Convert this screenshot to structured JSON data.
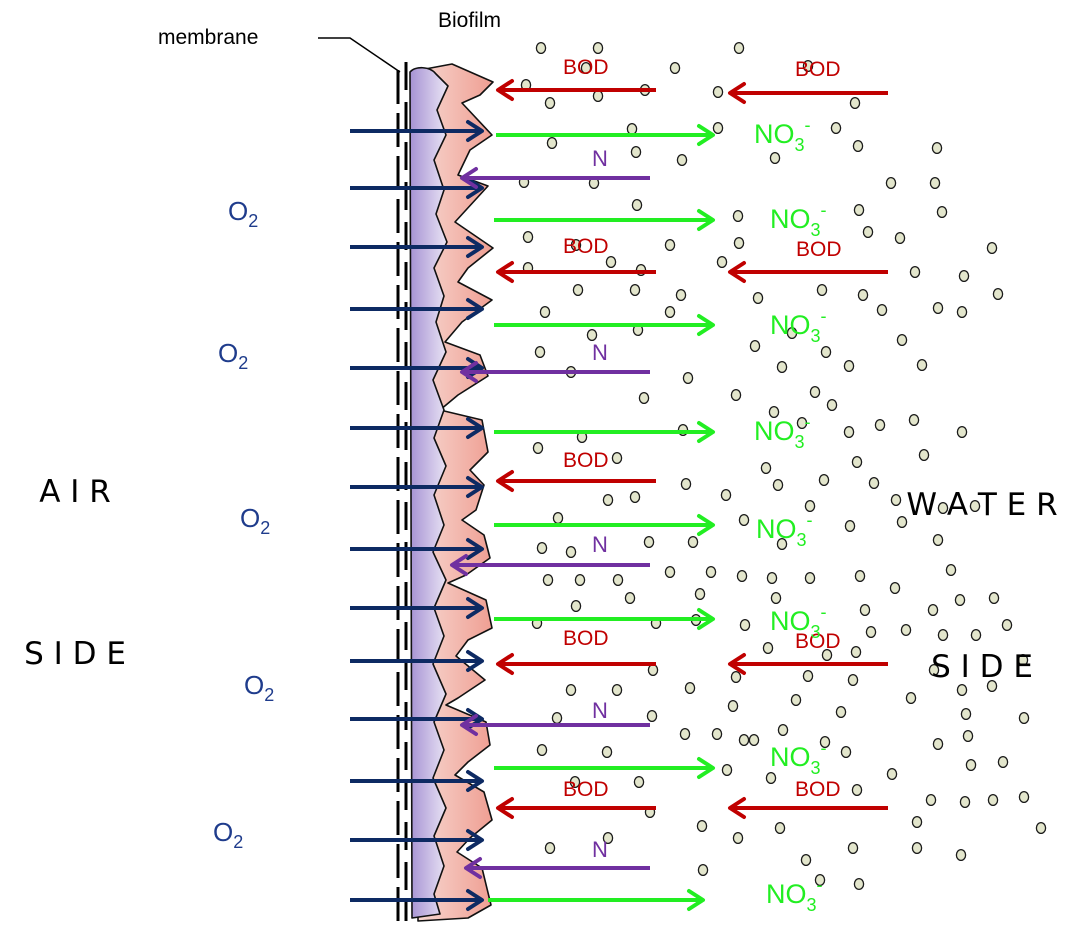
{
  "labels": {
    "membrane": "membrane",
    "biofilm": "Biofilm",
    "air_side_line1": "A I R",
    "air_side_line2": "S I D E",
    "water_side_line1": "W A T E R",
    "water_side_line2": "S I D E",
    "oxygen_main": "O",
    "oxygen_sub": "2",
    "bod": "BOD",
    "nitrogen": "N",
    "nitrate_main": "NO",
    "nitrate_sub": "3",
    "nitrate_sup": "-"
  },
  "colors": {
    "oxygen_arrow": "#0d2a63",
    "oxygen_text": "#1f3c8c",
    "bod": "#c00000",
    "nitrogen": "#7030a0",
    "nitrate": "#22ee22",
    "biofilm_inner": "#b7a4d8",
    "biofilm_outer": "#f4c9c1",
    "particle": "#e3e6cc"
  },
  "icons": {
    "membrane": "dashed-line",
    "particles": "ellipse-dots"
  }
}
